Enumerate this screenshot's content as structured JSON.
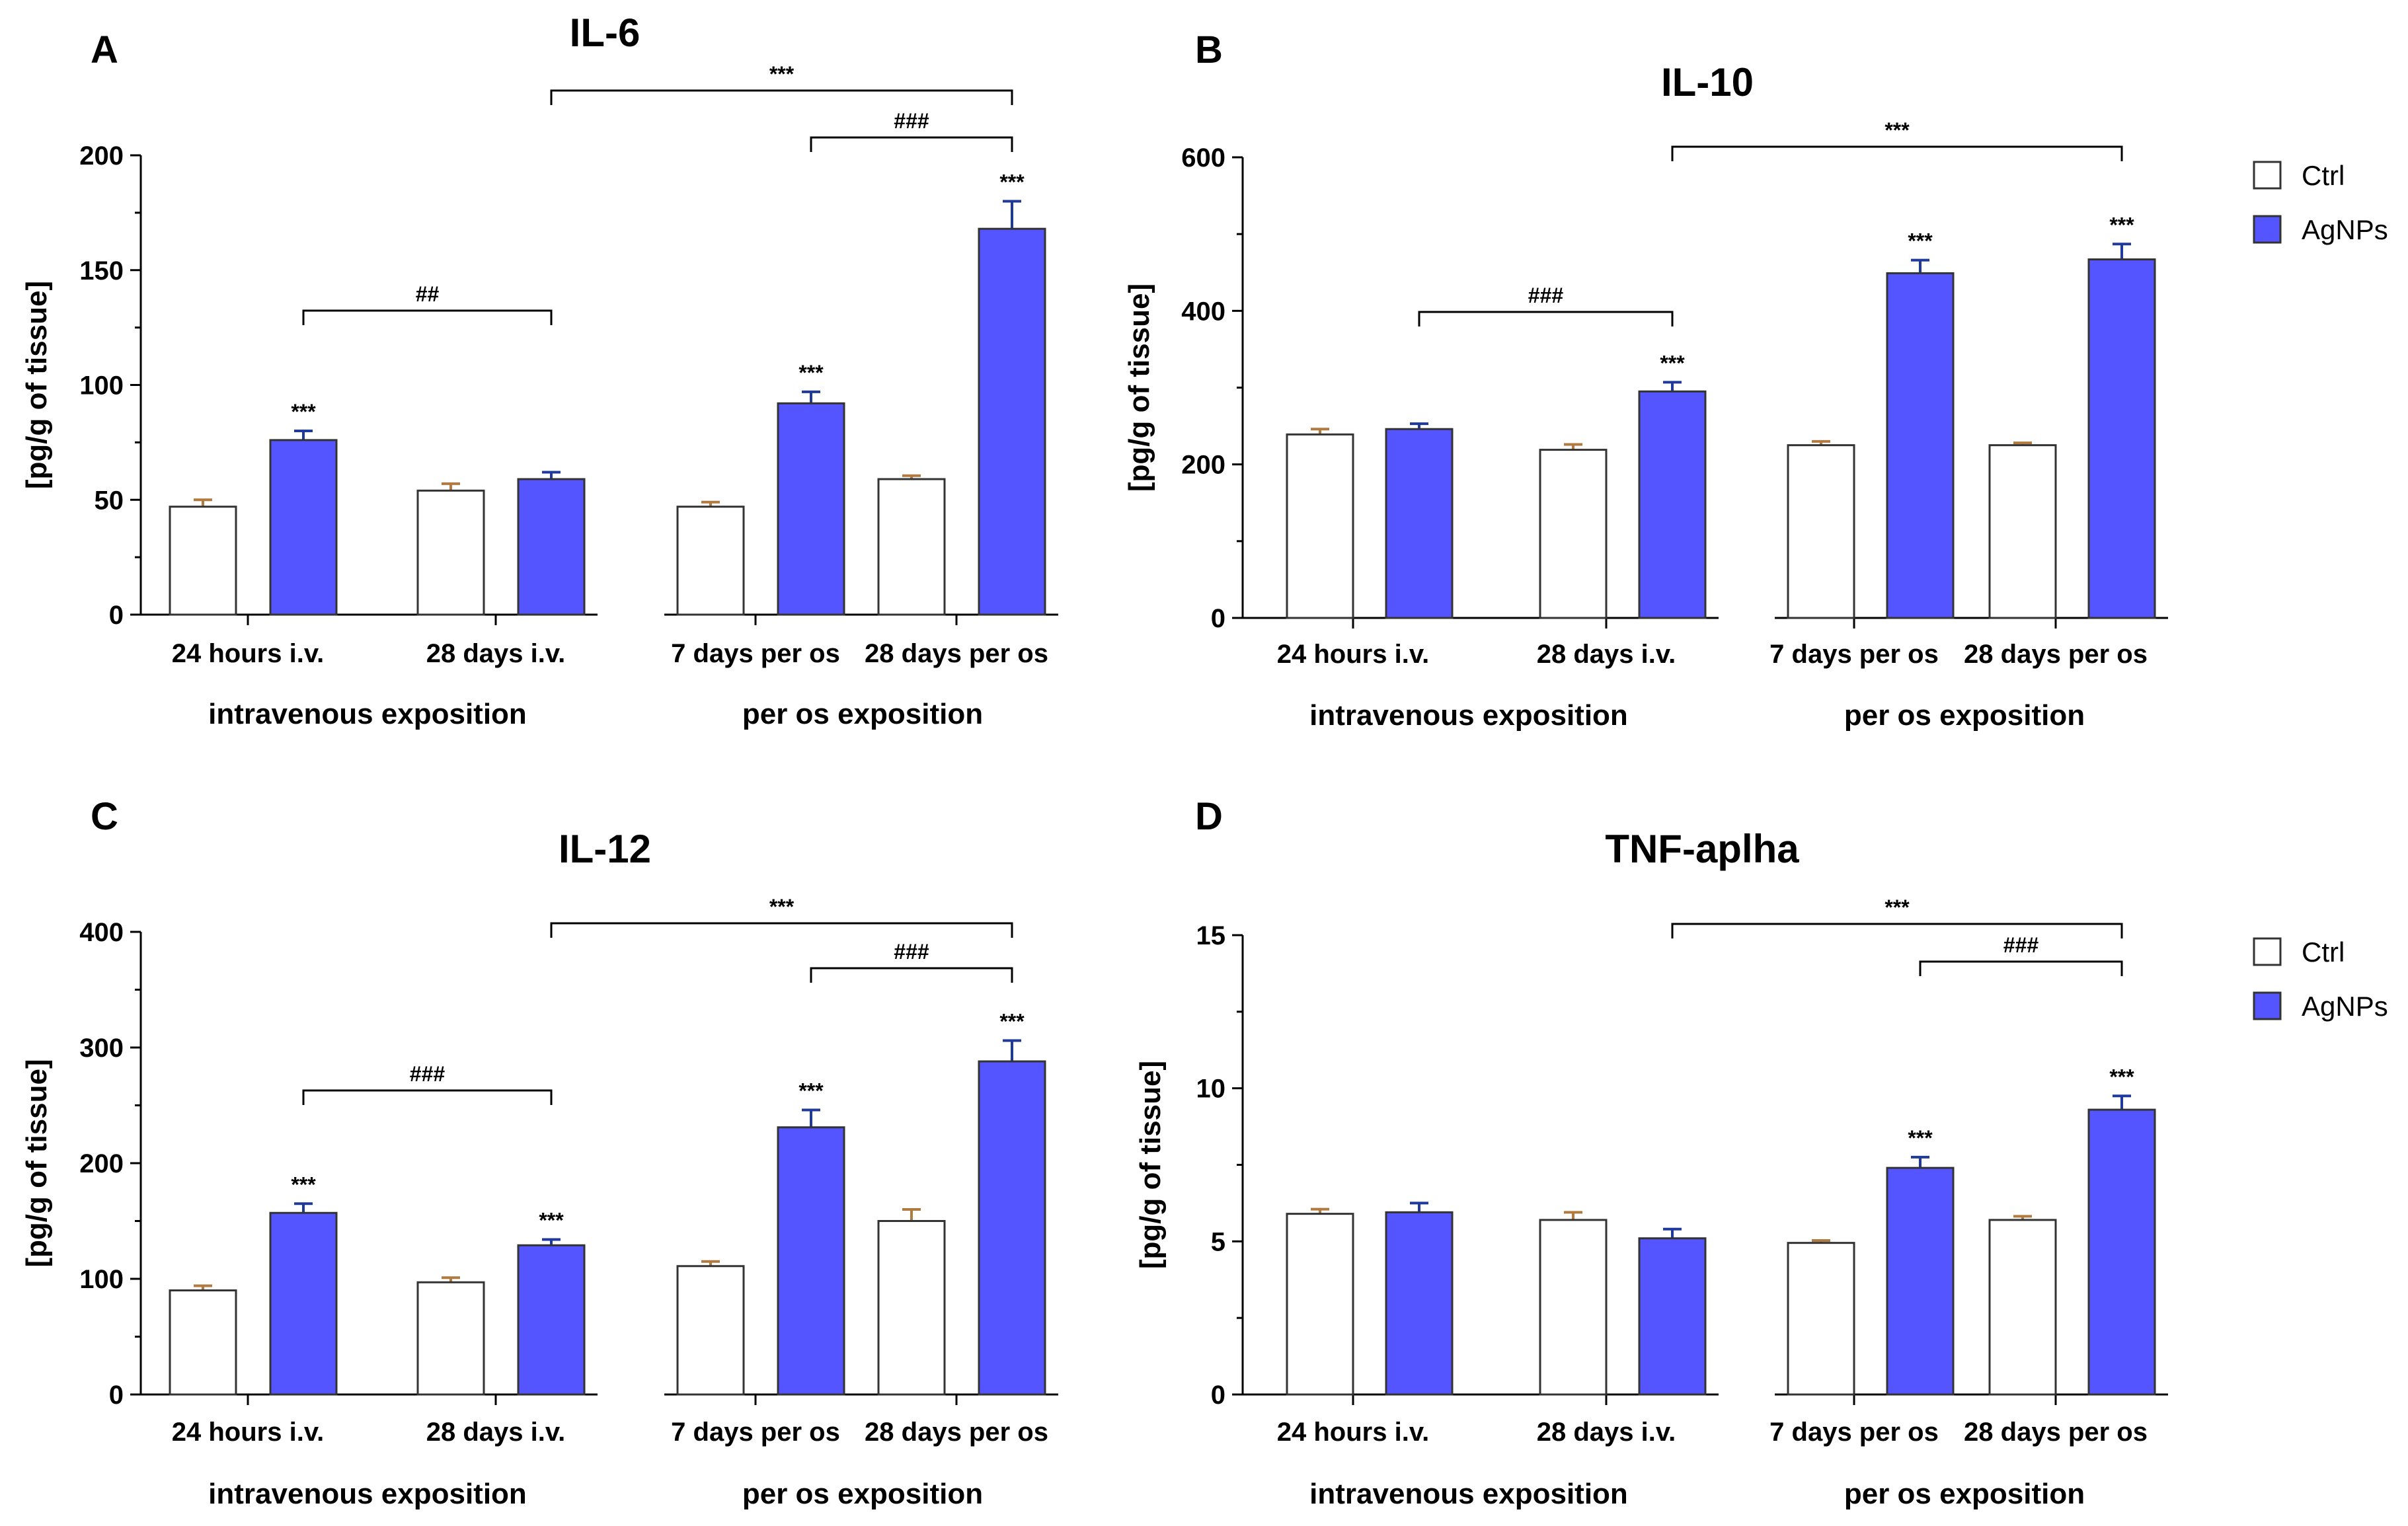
{
  "chart_data": [
    {
      "panel": "A",
      "type": "bar",
      "title": "IL-6",
      "ylabel": "[pg/g of tissue]",
      "ylim": [
        0,
        200
      ],
      "yticks": [
        0,
        50,
        100,
        150,
        200
      ],
      "categories": [
        "24 hours i.v.",
        "28 days i.v.",
        "7 days per os",
        "28 days per os"
      ],
      "group_labels": [
        "intravenous exposition",
        "per os exposition"
      ],
      "series": [
        {
          "name": "Ctrl",
          "values": [
            47,
            54,
            47,
            59
          ],
          "errors": [
            3,
            3,
            2,
            1.5
          ]
        },
        {
          "name": "AgNPs",
          "values": [
            76,
            59,
            92,
            168
          ],
          "errors": [
            4,
            3,
            5,
            12
          ],
          "significance": [
            "***",
            "",
            "***",
            "***"
          ]
        }
      ],
      "brackets": [
        {
          "from": "24 hours i.v.",
          "to": "28 days i.v.",
          "label": "##"
        },
        {
          "from": "28 days i.v.",
          "to": "28 days per os",
          "label": "***"
        },
        {
          "from": "7 days per os",
          "to": "28 days per os",
          "label": "###"
        }
      ],
      "legend": false
    },
    {
      "panel": "B",
      "type": "bar",
      "title": "IL-10",
      "ylabel": "[pg/g of tissue]",
      "ylim": [
        0,
        600
      ],
      "yticks": [
        0,
        200,
        400,
        600
      ],
      "categories": [
        "24 hours i.v.",
        "28 days i.v.",
        "7 days per os",
        "28 days per os"
      ],
      "group_labels": [
        "intravenous exposition",
        "per os exposition"
      ],
      "series": [
        {
          "name": "Ctrl",
          "values": [
            239,
            219,
            225,
            225
          ],
          "errors": [
            7,
            7,
            5,
            3
          ]
        },
        {
          "name": "AgNPs",
          "values": [
            246,
            295,
            449,
            467
          ],
          "errors": [
            7,
            12,
            17,
            20
          ],
          "significance": [
            "",
            "***",
            "***",
            "***"
          ]
        }
      ],
      "brackets": [
        {
          "from": "24 hours i.v.",
          "to": "28 days i.v.",
          "label": "###"
        },
        {
          "from": "28 days i.v.",
          "to": "28 days per os",
          "label": "***"
        }
      ],
      "legend": true
    },
    {
      "panel": "C",
      "type": "bar",
      "title": "IL-12",
      "ylabel": "[pg/g of tissue]",
      "ylim": [
        0,
        400
      ],
      "yticks": [
        0,
        100,
        200,
        300,
        400
      ],
      "categories": [
        "24 hours i.v.",
        "28 days i.v.",
        "7 days per os",
        "28 days per os"
      ],
      "group_labels": [
        "intravenous exposition",
        "per os exposition"
      ],
      "series": [
        {
          "name": "Ctrl",
          "values": [
            90,
            97,
            111,
            150
          ],
          "errors": [
            4,
            4,
            4,
            10
          ]
        },
        {
          "name": "AgNPs",
          "values": [
            157,
            129,
            231,
            288
          ],
          "errors": [
            8,
            5,
            15,
            18
          ],
          "significance": [
            "***",
            "***",
            "***",
            "***"
          ]
        }
      ],
      "brackets": [
        {
          "from": "24 hours i.v.",
          "to": "28 days i.v.",
          "label": "###"
        },
        {
          "from": "28 days i.v.",
          "to": "28 days per os",
          "label": "***"
        },
        {
          "from": "7 days per os",
          "to": "28 days per os",
          "label": "###"
        }
      ],
      "legend": false
    },
    {
      "panel": "D",
      "type": "bar",
      "title": "TNF-aplha",
      "ylabel": "[pg/g of tissue]",
      "ylim": [
        0,
        15
      ],
      "yticks": [
        0,
        5,
        10,
        15
      ],
      "categories": [
        "24 hours i.v.",
        "28 days i.v.",
        "7 days per os",
        "28 days per os"
      ],
      "group_labels": [
        "intravenous exposition",
        "per os exposition"
      ],
      "series": [
        {
          "name": "Ctrl",
          "values": [
            5.9,
            5.7,
            4.95,
            5.7
          ],
          "errors": [
            0.15,
            0.25,
            0.08,
            0.12
          ]
        },
        {
          "name": "AgNPs",
          "values": [
            5.95,
            5.1,
            7.4,
            9.3
          ],
          "errors": [
            0.3,
            0.3,
            0.35,
            0.45
          ],
          "significance": [
            "",
            "",
            "***",
            "***"
          ]
        }
      ],
      "brackets": [
        {
          "from": "28 days i.v.",
          "to": "28 days per os",
          "label": "***"
        },
        {
          "from": "7 days per os",
          "to": "28 days per os",
          "label": "###"
        }
      ],
      "legend": true
    }
  ],
  "legend": {
    "items": [
      {
        "label": "Ctrl",
        "color": "#ffffff"
      },
      {
        "label": "AgNPs",
        "color": "#5555ff"
      }
    ]
  },
  "colors": {
    "ctrl_fill": "#ffffff",
    "agnps_fill": "#5555ff",
    "bar_edge": "#333333",
    "ctrl_error": "#b07a40",
    "agnps_error": "#1f3a9a",
    "axis": "#000000"
  }
}
